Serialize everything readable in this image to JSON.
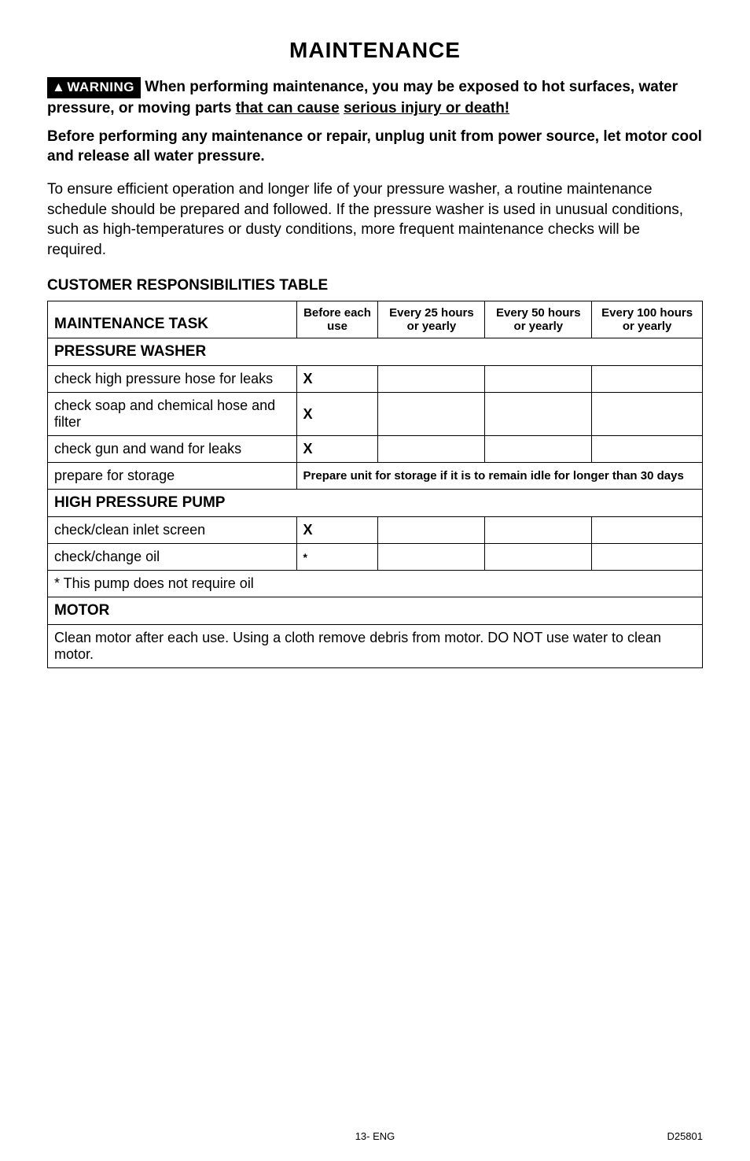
{
  "heading": "MAINTENANCE",
  "warning": {
    "badge_prefix": "▲",
    "badge_label": "WARNING",
    "text_lead": "When performing maintenance, you may be exposed to hot surfaces, water pressure, or moving parts ",
    "text_underlined1": "that can cause",
    "text_underlined2": "serious injury or death!"
  },
  "before_para": "Before performing any maintenance or repair, unplug unit from power source, let motor cool and release all water pressure.",
  "body_para": "To ensure efficient operation and longer life of your pressure washer, a routine maintenance schedule should be prepared and followed. If the pressure washer is used in unusual conditions, such as high-temperatures or dusty conditions, more frequent maintenance checks will be required.",
  "table_title": "CUSTOMER RESPONSIBILITIES TABLE",
  "columns": {
    "task": "MAINTENANCE TASK",
    "before": "Before each use",
    "e25": "Every 25 hours or yearly",
    "e50": "Every 50 hours or yearly",
    "e100": "Every 100 hours or yearly"
  },
  "sections": {
    "pressure_washer": "PRESSURE WASHER",
    "high_pressure_pump": "HIGH PRESSURE PUMP",
    "motor": "MOTOR"
  },
  "rows": {
    "hose_leaks": {
      "task": "check high pressure hose for leaks",
      "before": "X"
    },
    "soap_filter": {
      "task": "check soap and chemical hose and filter",
      "before": "X"
    },
    "gun_wand": {
      "task": "check gun and wand for leaks",
      "before": "X"
    },
    "storage": {
      "task": "prepare for storage",
      "note": "Prepare unit for storage if it is to remain idle for longer than 30 days"
    },
    "inlet_screen": {
      "task": "check/clean inlet screen",
      "before": "X"
    },
    "change_oil": {
      "task": "check/change oil",
      "before": "*"
    },
    "pump_note": "* This pump does not require oil",
    "motor_note": "Clean motor after each use. Using a cloth remove debris from motor. DO NOT use water to clean motor."
  },
  "footer": {
    "center": "13- ENG",
    "right": "D25801"
  }
}
